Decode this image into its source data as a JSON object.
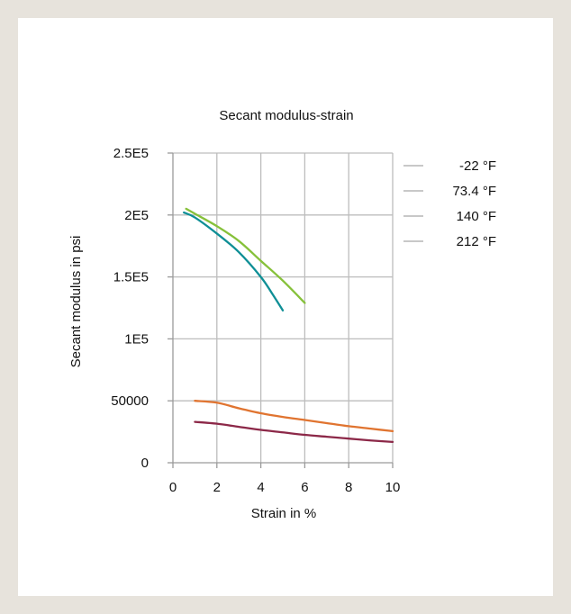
{
  "chart_data": {
    "type": "line",
    "title": "Secant modulus-strain",
    "xlabel": "Strain in %",
    "ylabel": "Secant modulus in psi",
    "xlim": [
      0,
      10
    ],
    "ylim": [
      0,
      250000
    ],
    "x_ticks": [
      0,
      2,
      4,
      6,
      8,
      10
    ],
    "x_tick_labels": [
      "0",
      "2",
      "4",
      "6",
      "8",
      "10"
    ],
    "y_ticks": [
      0,
      50000,
      100000,
      150000,
      200000,
      250000
    ],
    "y_tick_labels": [
      "0",
      "50000",
      "1E5",
      "1.5E5",
      "2E5",
      "2.5E5"
    ],
    "grid": true,
    "legend_position": "right",
    "series": [
      {
        "name": "-22 °F",
        "color": "#0f8f96",
        "points": [
          [
            0.5,
            202000
          ],
          [
            1,
            198000
          ],
          [
            2,
            185000
          ],
          [
            3,
            170000
          ],
          [
            4,
            150000
          ],
          [
            4.5,
            137000
          ],
          [
            5,
            123000
          ]
        ]
      },
      {
        "name": "73.4 °F",
        "color": "#86c13a",
        "points": [
          [
            0.6,
            205000
          ],
          [
            1,
            201000
          ],
          [
            2,
            191000
          ],
          [
            3,
            179000
          ],
          [
            4,
            163000
          ],
          [
            5,
            147000
          ],
          [
            6,
            129000
          ]
        ]
      },
      {
        "name": "140 °F",
        "color": "#e07430",
        "points": [
          [
            1,
            50000
          ],
          [
            2,
            48500
          ],
          [
            3,
            44000
          ],
          [
            4,
            40000
          ],
          [
            5,
            37000
          ],
          [
            6,
            34500
          ],
          [
            7,
            32000
          ],
          [
            8,
            29500
          ],
          [
            9,
            27500
          ],
          [
            10,
            25500
          ]
        ]
      },
      {
        "name": "212 °F",
        "color": "#8c2848",
        "points": [
          [
            1,
            33000
          ],
          [
            2,
            31500
          ],
          [
            3,
            29000
          ],
          [
            4,
            26500
          ],
          [
            5,
            24500
          ],
          [
            6,
            22500
          ],
          [
            7,
            21000
          ],
          [
            8,
            19500
          ],
          [
            9,
            18000
          ],
          [
            10,
            16800
          ]
        ]
      }
    ]
  },
  "legend_line_color": "#c8c8c8",
  "grid_color": "#bdbdbd"
}
